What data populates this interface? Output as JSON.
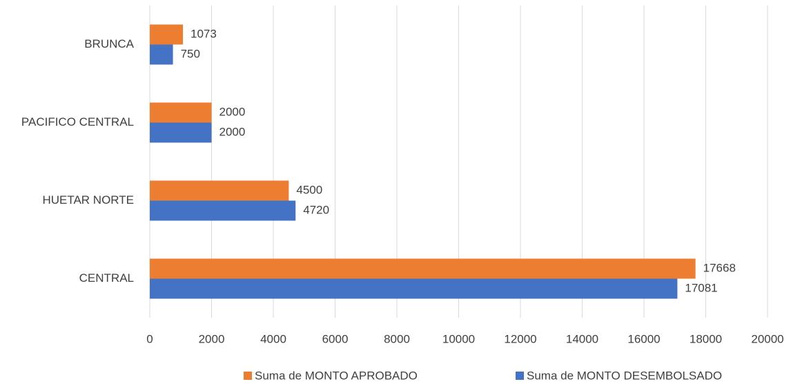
{
  "chart_data": {
    "type": "barh",
    "categories": [
      "BRUNCA",
      "PACIFICO CENTRAL",
      "HUETAR NORTE",
      "CENTRAL"
    ],
    "series": [
      {
        "name": "Suma de MONTO APROBADO",
        "color": "#ed7d31",
        "values": [
          1073,
          2000,
          4500,
          17668
        ]
      },
      {
        "name": "Suma de MONTO DESEMBOLSADO",
        "color": "#4472c4",
        "values": [
          750,
          2000,
          4720,
          17081
        ]
      }
    ],
    "xlim": [
      0,
      20000
    ],
    "xticks": [
      0,
      2000,
      4000,
      6000,
      8000,
      10000,
      12000,
      14000,
      16000,
      18000,
      20000
    ],
    "grid": true,
    "legend": "bottom"
  }
}
